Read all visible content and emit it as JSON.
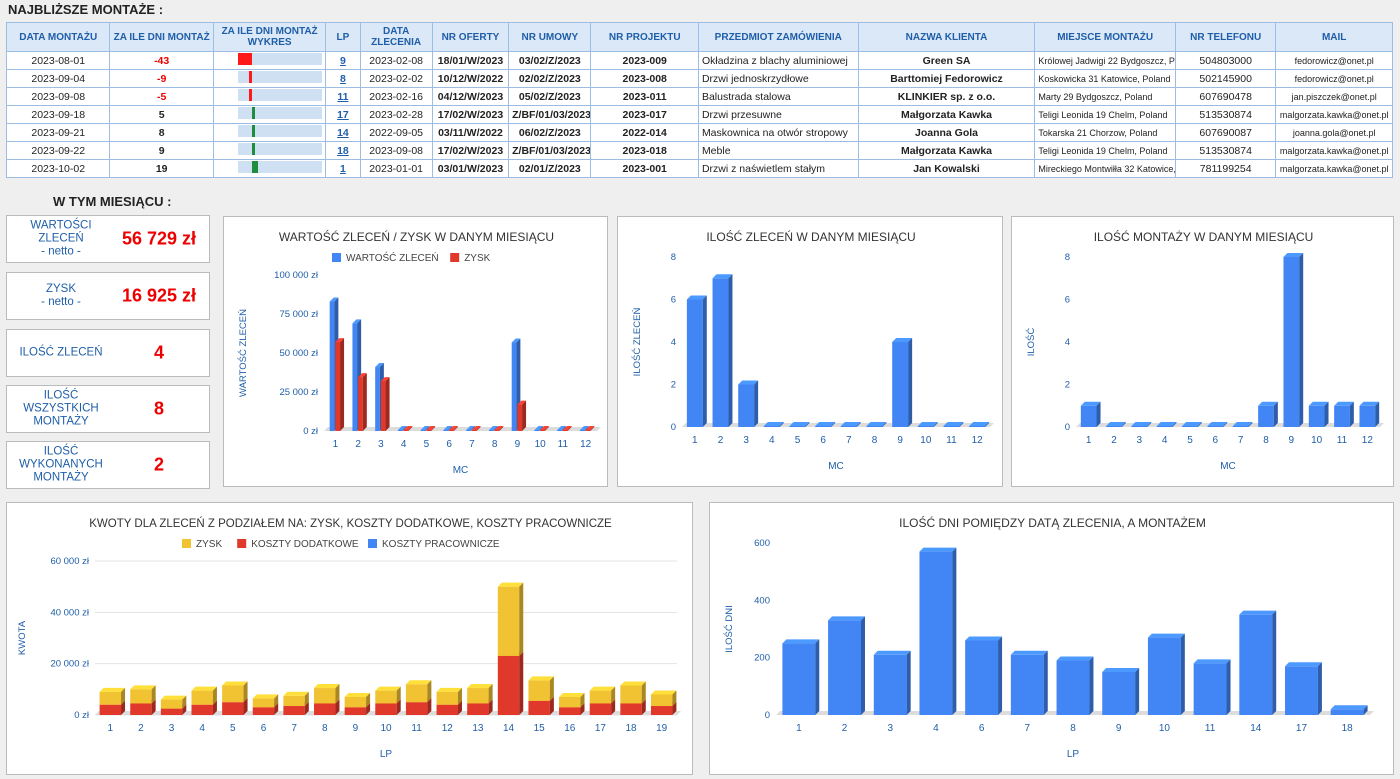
{
  "header": {
    "title": "NAJBLIŻSZE MONTAŻE :"
  },
  "table": {
    "columns": [
      "DATA MONTAŻU",
      "ZA ILE DNI MONTAŻ",
      "ZA ILE  DNI MONTAŻ WYKRES",
      "LP",
      "DATA ZLECENIA",
      "NR OFERTY",
      "NR UMOWY",
      "NR PROJEKTU",
      "PRZEDMIOT ZAMÓWIENIA",
      "NAZWA KLIENTA",
      "MIEJSCE MONTAŻU",
      "NR TELEFONU",
      "MAIL"
    ],
    "rows": [
      {
        "data_montazu": "2023-08-01",
        "za_ile": "-43",
        "days": -43,
        "lp": "9",
        "data_zlecenia": "2023-02-08",
        "oferta": "18/01/W/2023",
        "umowa": "03/02/Z/2023",
        "projekt": "2023-009",
        "przedmiot": "Okładzina z blachy aluminiowej",
        "klient": "Green SA",
        "miejsce": "Królowej Jadwigi 22 Bydgoszcz, Polan",
        "telefon": "504803000",
        "mail": "fedorowicz@onet.pl"
      },
      {
        "data_montazu": "2023-09-04",
        "za_ile": "-9",
        "days": -9,
        "lp": "8",
        "data_zlecenia": "2023-02-02",
        "oferta": "10/12/W/2022",
        "umowa": "02/02/Z/2023",
        "projekt": "2023-008",
        "przedmiot": "Drzwi jednoskrzydłowe",
        "klient": "Barttomiej Fedorowicz",
        "miejsce": "Koskowicka 31 Katowice, Poland",
        "telefon": "502145900",
        "mail": "fedorowicz@onet.pl"
      },
      {
        "data_montazu": "2023-09-08",
        "za_ile": "-5",
        "days": -5,
        "lp": "11",
        "data_zlecenia": "2023-02-16",
        "oferta": "04/12/W/2023",
        "umowa": "05/02/Z/2023",
        "projekt": "2023-011",
        "przedmiot": "Balustrada stalowa",
        "klient": "KLINKIER sp. z o.o.",
        "miejsce": "Marty 29 Bydgoszcz, Poland",
        "telefon": "607690478",
        "mail": "jan.piszczek@onet.pl"
      },
      {
        "data_montazu": "2023-09-18",
        "za_ile": "5",
        "days": 5,
        "lp": "17",
        "data_zlecenia": "2023-02-28",
        "oferta": "17/02/W/2023",
        "umowa": "Z/BF/01/03/2023",
        "projekt": "2023-017",
        "przedmiot": "Drzwi przesuwne",
        "klient": "Małgorzata Kawka",
        "miejsce": "Teligi Leonida 19 Chelm, Poland",
        "telefon": "513530874",
        "mail": "malgorzata.kawka@onet.pl"
      },
      {
        "data_montazu": "2023-09-21",
        "za_ile": "8",
        "days": 8,
        "lp": "14",
        "data_zlecenia": "2022-09-05",
        "oferta": "03/11/W/2022",
        "umowa": "06/02/Z/2023",
        "projekt": "2022-014",
        "przedmiot": "Maskownica na otwór stropowy",
        "klient": "Joanna Gola",
        "miejsce": "Tokarska 21 Chorzow, Poland",
        "telefon": "607690087",
        "mail": "joanna.gola@onet.pl"
      },
      {
        "data_montazu": "2023-09-22",
        "za_ile": "9",
        "days": 9,
        "lp": "18",
        "data_zlecenia": "2023-09-08",
        "oferta": "17/02/W/2023",
        "umowa": "Z/BF/01/03/2023",
        "projekt": "2023-018",
        "przedmiot": "Meble",
        "klient": "Małgorzata Kawka",
        "miejsce": "Teligi Leonida 19 Chelm, Poland",
        "telefon": "513530874",
        "mail": "malgorzata.kawka@onet.pl"
      },
      {
        "data_montazu": "2023-10-02",
        "za_ile": "19",
        "days": 19,
        "lp": "1",
        "data_zlecenia": "2023-01-01",
        "oferta": "03/01/W/2023",
        "umowa": "02/01/Z/2023",
        "projekt": "2023-001",
        "przedmiot": "Drzwi z naświetlem stałym",
        "klient": "Jan Kowalski",
        "miejsce": "Mireckiego Montwiłła 32 Katowice, Pol",
        "telefon": "781199254",
        "mail": "malgorzata.kawka@onet.pl"
      }
    ]
  },
  "section2": {
    "title": "W TYM MIESIĄCU :"
  },
  "kpis": [
    {
      "label": "WARTOŚCI ZLECEŃ\n- netto -",
      "value": "56 729 zł"
    },
    {
      "label": "ZYSK\n- netto -",
      "value": "16 925 zł"
    },
    {
      "label": "ILOŚĆ ZLECEŃ",
      "value": "4"
    },
    {
      "label": "ILOŚĆ WSZYSTKICH MONTAŻY",
      "value": "8"
    },
    {
      "label": "ILOŚĆ WYKONANYCH MONTAŻY",
      "value": "2"
    }
  ],
  "colors": {
    "blue": "#4285f4",
    "red": "#e0392b",
    "yellow": "#f1c232",
    "green": "#1e8e3e",
    "axis": "#1f5ea8"
  },
  "chart_data": [
    {
      "id": "c1",
      "type": "bar",
      "title": "WARTOŚĆ ZLECEŃ / ZYSK W DANYM MIESIĄCU",
      "xlabel": "MC",
      "ylabel": "WARTOŚĆ ZLECEŃ",
      "categories": [
        "1",
        "2",
        "3",
        "4",
        "5",
        "6",
        "7",
        "8",
        "9",
        "10",
        "11",
        "12"
      ],
      "ylim": [
        0,
        100000
      ],
      "yticks": [
        "0 zł",
        "25 000 zł",
        "50 000 zł",
        "75 000 zł",
        "100 000 zł"
      ],
      "legend": "top",
      "series": [
        {
          "name": "WARTOŚĆ ZLECEŃ",
          "values": [
            83000,
            69000,
            41000,
            0,
            0,
            0,
            0,
            0,
            56700,
            0,
            0,
            0
          ]
        },
        {
          "name": "ZYSK",
          "values": [
            57000,
            34500,
            32000,
            0,
            0,
            0,
            0,
            0,
            16900,
            0,
            0,
            0
          ]
        }
      ]
    },
    {
      "id": "c2",
      "type": "bar",
      "title": "ILOŚĆ ZLECEŃ W DANYM MIESIĄCU",
      "xlabel": "MC",
      "ylabel": "ILOŚĆ ZLECEŃ",
      "categories": [
        "1",
        "2",
        "3",
        "4",
        "5",
        "6",
        "7",
        "8",
        "9",
        "10",
        "11",
        "12"
      ],
      "ylim": [
        0,
        8
      ],
      "yticks": [
        "0",
        "2",
        "4",
        "6",
        "8"
      ],
      "values": [
        6,
        7,
        2,
        0,
        0,
        0,
        0,
        0,
        4,
        0,
        0,
        0
      ]
    },
    {
      "id": "c3",
      "type": "bar",
      "title": "ILOŚĆ MONTAŻY W DANYM MIESIĄCU",
      "xlabel": "MC",
      "ylabel": "ILOŚĆ",
      "categories": [
        "1",
        "2",
        "3",
        "4",
        "5",
        "6",
        "7",
        "8",
        "9",
        "10",
        "11",
        "12"
      ],
      "ylim": [
        0,
        8
      ],
      "yticks": [
        "0",
        "2",
        "4",
        "6",
        "8"
      ],
      "values": [
        1,
        0,
        0,
        0,
        0,
        0,
        0,
        1,
        8,
        1,
        1,
        1
      ]
    },
    {
      "id": "c4",
      "type": "stacked-bar",
      "title": "KWOTY DLA ZLECEŃ Z PODZIAŁEM NA: ZYSK, KOSZTY DODATKOWE, KOSZTY PRACOWNICZE",
      "xlabel": "LP",
      "ylabel": "KWOTA",
      "categories": [
        "1",
        "2",
        "3",
        "4",
        "5",
        "6",
        "7",
        "8",
        "9",
        "10",
        "11",
        "12",
        "13",
        "14",
        "15",
        "16",
        "17",
        "18",
        "19"
      ],
      "ylim": [
        0,
        60000
      ],
      "yticks": [
        "0 zł",
        "20 000 zł",
        "40 000 zł",
        "60 000 zł"
      ],
      "legend": "top",
      "series": [
        {
          "name": "ZYSK",
          "values": [
            5000,
            5500,
            3500,
            5500,
            6500,
            3500,
            4000,
            6000,
            4000,
            5000,
            7000,
            5000,
            6000,
            27000,
            8000,
            4000,
            5000,
            7000,
            4500
          ]
        },
        {
          "name": "KOSZTY DODATKOWE",
          "values": [
            4000,
            4500,
            2500,
            4000,
            5000,
            3000,
            3500,
            4500,
            3000,
            4500,
            5000,
            4000,
            4500,
            23000,
            5500,
            3000,
            4500,
            4500,
            3500
          ]
        },
        {
          "name": "KOSZTY PRACOWNICZE",
          "values": [
            0,
            0,
            0,
            0,
            0,
            0,
            0,
            0,
            0,
            0,
            0,
            0,
            0,
            0,
            0,
            0,
            0,
            0,
            0
          ]
        }
      ]
    },
    {
      "id": "c5",
      "type": "bar",
      "title": "ILOŚĆ DNI POMIĘDZY DATĄ ZLECENIA, A MONTAŻEM",
      "xlabel": "LP",
      "ylabel": "ILOŚĆ DNI",
      "categories": [
        "1",
        "2",
        "3",
        "4",
        "6",
        "7",
        "8",
        "9",
        "10",
        "11",
        "14",
        "17",
        "18"
      ],
      "ylim": [
        0,
        600
      ],
      "yticks": [
        "0",
        "200",
        "400",
        "600"
      ],
      "values": [
        250,
        330,
        210,
        570,
        260,
        210,
        190,
        150,
        270,
        180,
        350,
        170,
        20
      ]
    }
  ]
}
